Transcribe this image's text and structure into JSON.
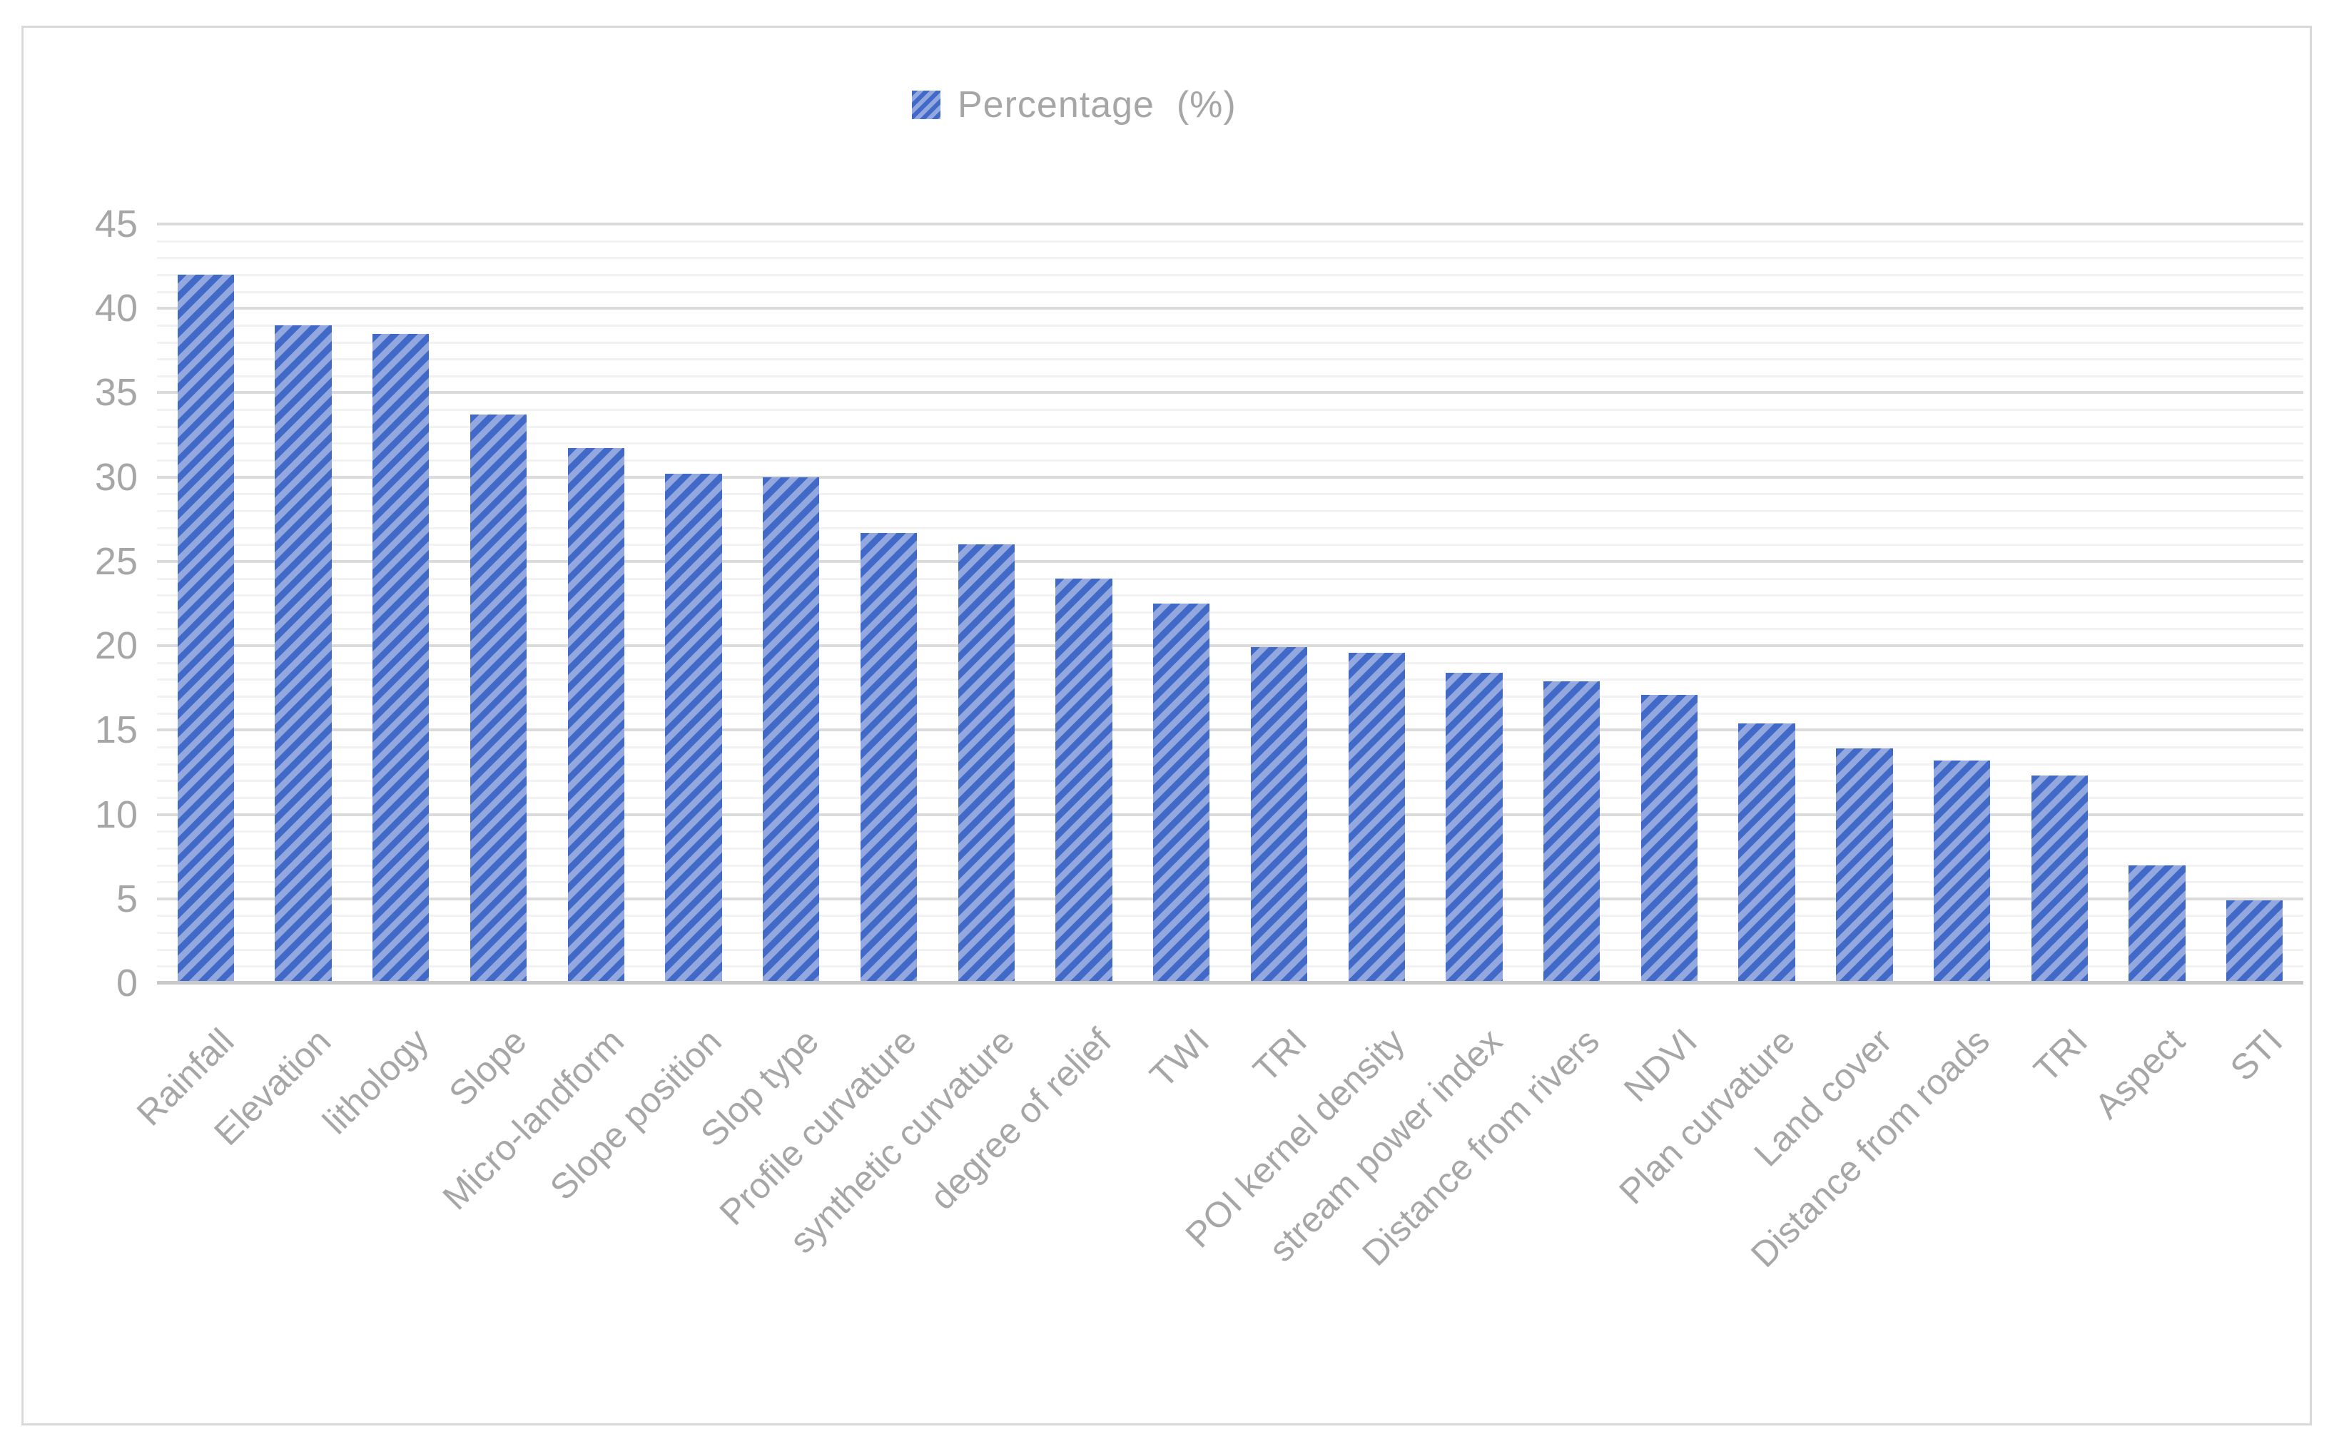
{
  "chart_data": {
    "type": "bar",
    "title": "",
    "legend": {
      "label": "Percentage  (%)",
      "marker_icon": "hatched-square",
      "position": "top-center"
    },
    "categories": [
      "Rainfall",
      "Elevation",
      "lithology",
      "Slope",
      "Micro-landform",
      "Slope position",
      "Slop type",
      "Profile curvature",
      "synthetic curvature",
      "degree of relief",
      "TWI",
      "TRI",
      "POI kernel density",
      "stream power index",
      "Distance from rivers",
      "NDVI",
      "Plan curvature",
      "Land cover",
      "Distance from roads",
      "TRI",
      "Aspect",
      "STI"
    ],
    "values": [
      42,
      39,
      38.5,
      33.7,
      31.7,
      30.2,
      30,
      26.7,
      26,
      24,
      22.5,
      19.9,
      19.6,
      18.4,
      17.9,
      17.1,
      15.4,
      13.9,
      13.2,
      12.3,
      7,
      4.9
    ],
    "xlabel": "",
    "ylabel": "",
    "ylim": [
      0,
      45
    ],
    "ytick_step_major": 5,
    "ytick_step_minor": 1,
    "ytick_labels": [
      "0",
      "5",
      "10",
      "15",
      "20",
      "25",
      "30",
      "35",
      "40",
      "45"
    ],
    "grid": "horizontal minor+major, on",
    "bar_style": "diagonal-hatch",
    "x_label_rotation_deg": 45
  },
  "colors": {
    "bar_hatch_dark": "#4169C8",
    "bar_hatch_light": "#93A8DF",
    "grid_minor": "#F2F2F2",
    "grid_major": "#DBDBDB",
    "axis_line": "#C8C8C8",
    "label_text": "#A6A6A6",
    "frame_border": "#D9D9D9",
    "background": "#FFFFFF"
  }
}
